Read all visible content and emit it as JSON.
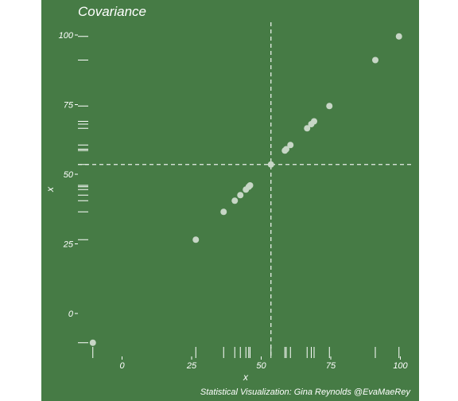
{
  "colors": {
    "panel": "#467b45",
    "point": "#c7d6c6",
    "ref_line": "#e8efe8",
    "text": "#ffffff"
  },
  "chart_data": {
    "type": "scatter",
    "title": "Covariance",
    "xlabel": "x",
    "ylabel": "x",
    "caption": "Statistical Visualization: Gina Reynolds @EvaMaeRey",
    "xlim": [
      -11.5,
      106
    ],
    "ylim": [
      -11.5,
      106
    ],
    "x_ticks": [
      0,
      25,
      50,
      75,
      100
    ],
    "y_ticks": [
      0,
      25,
      50,
      75,
      100
    ],
    "x_tick_labels": [
      "0",
      "25",
      "50",
      "75",
      "100"
    ],
    "y_tick_labels": [
      "0",
      "25",
      "50",
      "75",
      "100"
    ],
    "mean_x": 53.5,
    "mean_y": 53.5,
    "rug": true,
    "grid": false,
    "points": [
      {
        "x": -10.5,
        "y": -10.5
      },
      {
        "x": 26.5,
        "y": 26.5
      },
      {
        "x": 36.5,
        "y": 36.5
      },
      {
        "x": 40.5,
        "y": 40.5
      },
      {
        "x": 42.5,
        "y": 42.5
      },
      {
        "x": 44.5,
        "y": 44.5
      },
      {
        "x": 45.5,
        "y": 45.5
      },
      {
        "x": 46.0,
        "y": 46.0
      },
      {
        "x": 53.5,
        "y": 53.5
      },
      {
        "x": 58.5,
        "y": 58.5
      },
      {
        "x": 59.0,
        "y": 59.0
      },
      {
        "x": 60.5,
        "y": 60.5
      },
      {
        "x": 66.5,
        "y": 66.5
      },
      {
        "x": 68.0,
        "y": 68.0
      },
      {
        "x": 69.0,
        "y": 69.0
      },
      {
        "x": 74.5,
        "y": 74.5
      },
      {
        "x": 91.0,
        "y": 91.0
      },
      {
        "x": 99.5,
        "y": 99.5
      }
    ]
  }
}
